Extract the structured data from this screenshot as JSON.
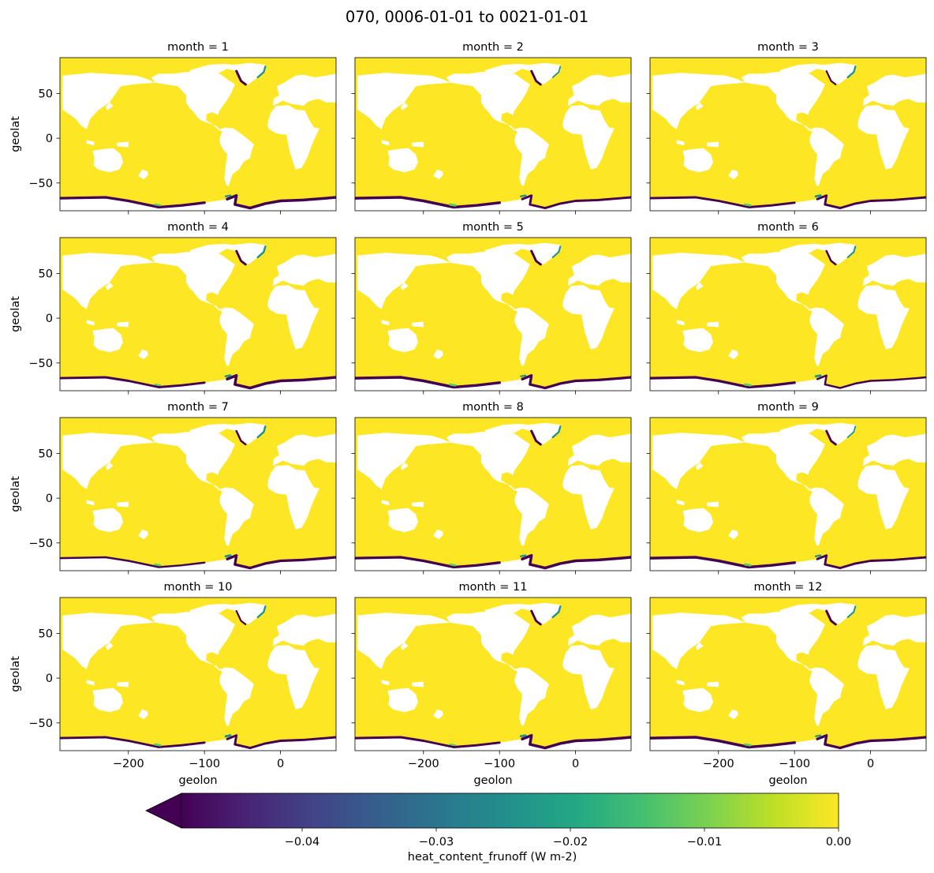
{
  "figure": {
    "title": "070, 0006-01-01 to 0021-01-01"
  },
  "chart_data": {
    "type": "heatmap",
    "layout": {
      "rows": 4,
      "cols": 3
    },
    "facet_variable": "month",
    "panels": [
      {
        "title": "month = 1",
        "month": 1
      },
      {
        "title": "month = 2",
        "month": 2
      },
      {
        "title": "month = 3",
        "month": 3
      },
      {
        "title": "month = 4",
        "month": 4
      },
      {
        "title": "month = 5",
        "month": 5
      },
      {
        "title": "month = 6",
        "month": 6
      },
      {
        "title": "month = 7",
        "month": 7
      },
      {
        "title": "month = 8",
        "month": 8
      },
      {
        "title": "month = 9",
        "month": 9
      },
      {
        "title": "month = 10",
        "month": 10
      },
      {
        "title": "month = 11",
        "month": 11
      },
      {
        "title": "month = 12",
        "month": 12
      }
    ],
    "xlabel": "geolon",
    "ylabel": "geolat",
    "xlim": [
      -290,
      73
    ],
    "ylim": [
      -81,
      90
    ],
    "xticks": [
      -200,
      -100,
      0
    ],
    "xtick_labels": [
      "−200",
      "−100",
      "0"
    ],
    "yticks": [
      -50,
      0,
      50
    ],
    "ytick_labels": [
      "−50",
      "0",
      "50"
    ],
    "colorbar": {
      "label": "heat_content_frunoff (W m-2)",
      "vmin": -0.049,
      "vmax": 0.0,
      "extend": "min",
      "colormap": "viridis",
      "ticks": [
        -0.04,
        -0.03,
        -0.02,
        -0.01,
        0.0
      ],
      "tick_labels": [
        "−0.04",
        "−0.03",
        "−0.02",
        "−0.01",
        "0.00"
      ]
    },
    "colors": {
      "ocean": "#fde725",
      "land": "#ffffff",
      "runoff_min": "#440154",
      "runoff_mid": "#21918c",
      "runoff_light": "#5ec962"
    }
  }
}
